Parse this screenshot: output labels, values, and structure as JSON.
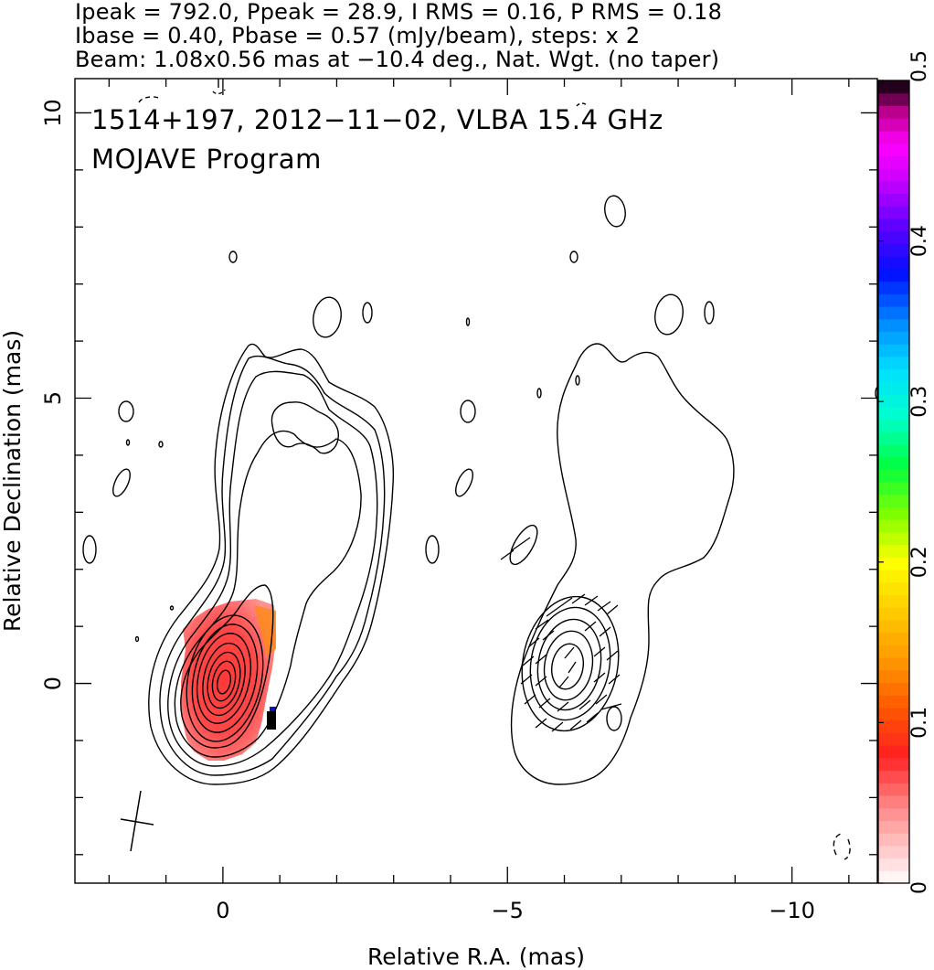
{
  "header": {
    "line1": "Ipeak = 792.0, Ppeak = 28.9, I RMS = 0.16, P RMS = 0.18",
    "line2": "Ibase = 0.40, Pbase = 0.57 (mJy/beam), steps: x 2",
    "line3": "Beam: 1.08x0.56 mas at −10.4 deg., Nat. Wgt. (no taper)"
  },
  "chart_data": {
    "type": "heatmap",
    "title": "1514+197, 2012−11−02, VLBA 15.4 GHz",
    "subtitle": "MOJAVE Program",
    "xlabel": "Relative R.A. (mas)",
    "ylabel": "Relative Declination (mas)",
    "xlim": [
      2.6,
      -11.5
    ],
    "ylim": [
      -3.5,
      10.6
    ],
    "x_ticks": [
      {
        "v": 0,
        "label": "0"
      },
      {
        "v": -5,
        "label": "−5"
      },
      {
        "v": -10,
        "label": "−10"
      }
    ],
    "y_ticks": [
      {
        "v": 0,
        "label": "0"
      },
      {
        "v": 5,
        "label": "5"
      },
      {
        "v": 10,
        "label": "10"
      }
    ],
    "x_minor_step": 1,
    "y_minor_step": 1,
    "grid": false,
    "panels": [
      {
        "name": "total intensity contours with fractional polarization color map",
        "x_offset": 0
      },
      {
        "name": "polarized intensity contours with EVPA vectors",
        "x_offset": -6.0
      }
    ],
    "core": {
      "x": 0.0,
      "y": 0.0
    },
    "peak_intensity_mJy_per_beam": 792.0,
    "peak_polarized_intensity_mJy_per_beam": 28.9,
    "base_contour_I_mJy_per_beam": 0.4,
    "base_contour_P_mJy_per_beam": 0.57,
    "contour_step_factor": 2,
    "beam": {
      "major_mas": 1.08,
      "minor_mas": 0.56,
      "pa_deg": -10.4,
      "location": "bottom-left"
    },
    "colorbar": {
      "label_min": "0",
      "range": [
        0,
        0.5
      ],
      "ticks": [
        {
          "v": 0,
          "label": "0"
        },
        {
          "v": 0.1,
          "label": "0.1"
        },
        {
          "v": 0.2,
          "label": "0.2"
        },
        {
          "v": 0.3,
          "label": "0.3"
        },
        {
          "v": 0.4,
          "label": "0.4"
        },
        {
          "v": 0.5,
          "label": "0.5"
        }
      ],
      "stops": [
        {
          "v": 0.0,
          "color": "#ffffff"
        },
        {
          "v": 0.05,
          "color": "#ff8080"
        },
        {
          "v": 0.08,
          "color": "#ff2020"
        },
        {
          "v": 0.11,
          "color": "#ff5a00"
        },
        {
          "v": 0.14,
          "color": "#ff9900"
        },
        {
          "v": 0.17,
          "color": "#ffcc00"
        },
        {
          "v": 0.2,
          "color": "#ffff00"
        },
        {
          "v": 0.23,
          "color": "#80ff00"
        },
        {
          "v": 0.26,
          "color": "#00ff40"
        },
        {
          "v": 0.29,
          "color": "#00ffcc"
        },
        {
          "v": 0.32,
          "color": "#00e0ff"
        },
        {
          "v": 0.35,
          "color": "#0088ff"
        },
        {
          "v": 0.38,
          "color": "#0010ff"
        },
        {
          "v": 0.41,
          "color": "#6000ff"
        },
        {
          "v": 0.44,
          "color": "#d000ff"
        },
        {
          "v": 0.46,
          "color": "#ff00ff"
        },
        {
          "v": 0.48,
          "color": "#c00090"
        },
        {
          "v": 0.5,
          "color": "#000000"
        }
      ]
    }
  }
}
